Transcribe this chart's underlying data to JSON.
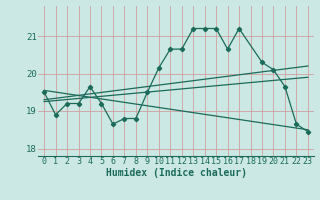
{
  "xlabel": "Humidex (Indice chaleur)",
  "xlim": [
    -0.5,
    23.5
  ],
  "ylim": [
    17.8,
    21.8
  ],
  "yticks": [
    18,
    19,
    20,
    21
  ],
  "xticks": [
    0,
    1,
    2,
    3,
    4,
    5,
    6,
    7,
    8,
    9,
    10,
    11,
    12,
    13,
    14,
    15,
    16,
    17,
    18,
    19,
    20,
    21,
    22,
    23
  ],
  "bg_color": "#cce8e4",
  "grid_color": "#aacfcb",
  "line_color": "#1a6b5a",
  "data_line": {
    "x": [
      0,
      1,
      2,
      3,
      4,
      5,
      6,
      7,
      8,
      9,
      10,
      11,
      12,
      13,
      14,
      15,
      16,
      17,
      19,
      20,
      21,
      22,
      23
    ],
    "y": [
      19.5,
      18.9,
      19.2,
      19.2,
      19.65,
      19.2,
      18.65,
      18.8,
      18.8,
      19.5,
      20.15,
      20.65,
      20.65,
      21.2,
      21.2,
      21.2,
      20.65,
      21.2,
      20.3,
      20.1,
      19.65,
      18.65,
      18.45
    ]
  },
  "trend_line1": {
    "x": [
      0,
      23
    ],
    "y": [
      19.3,
      20.2
    ]
  },
  "trend_line2": {
    "x": [
      0,
      23
    ],
    "y": [
      19.25,
      19.9
    ]
  },
  "trend_line3": {
    "x": [
      0,
      23
    ],
    "y": [
      19.55,
      18.5
    ]
  },
  "font_color": "#1a6b5a",
  "xlabel_fontsize": 7,
  "tick_fontsize": 6
}
